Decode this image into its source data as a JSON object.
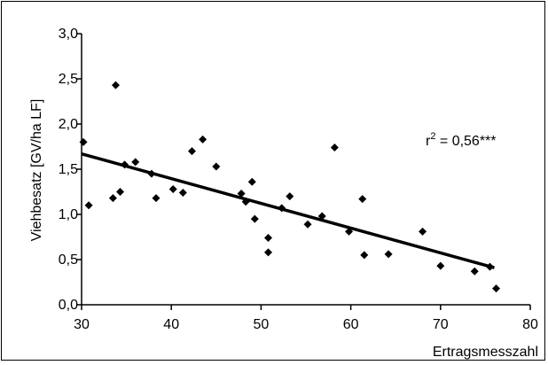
{
  "chart_data": {
    "type": "scatter",
    "xlabel": "Ertragsmesszahl",
    "ylabel": "Viehbesatz  [GV/ha LF]",
    "xlim": [
      30,
      80
    ],
    "ylim": [
      0,
      3
    ],
    "xticks": [
      30,
      40,
      50,
      60,
      70,
      80
    ],
    "yticks": [
      0,
      0.5,
      1,
      1.5,
      2,
      2.5,
      3
    ],
    "xtick_labels": [
      "30",
      "40",
      "50",
      "60",
      "70",
      "80"
    ],
    "ytick_labels": [
      "0,0",
      "0,5",
      "1,0",
      "1,5",
      "2,0",
      "2,5",
      "3,0"
    ],
    "grid": false,
    "annotation": {
      "base": "r",
      "sup": "2",
      "rest": " = 0,56***"
    },
    "points": [
      [
        30.2,
        1.8
      ],
      [
        30.8,
        1.1
      ],
      [
        33.5,
        1.18
      ],
      [
        33.8,
        2.43
      ],
      [
        34.3,
        1.25
      ],
      [
        34.8,
        1.55
      ],
      [
        36.0,
        1.58
      ],
      [
        37.8,
        1.45
      ],
      [
        38.3,
        1.18
      ],
      [
        40.2,
        1.28
      ],
      [
        41.3,
        1.24
      ],
      [
        42.3,
        1.7
      ],
      [
        43.5,
        1.83
      ],
      [
        45.0,
        1.53
      ],
      [
        47.8,
        1.23
      ],
      [
        48.3,
        1.14
      ],
      [
        49.0,
        1.36
      ],
      [
        49.3,
        0.95
      ],
      [
        50.8,
        0.74
      ],
      [
        50.8,
        0.58
      ],
      [
        52.3,
        1.07
      ],
      [
        53.2,
        1.2
      ],
      [
        55.2,
        0.89
      ],
      [
        56.8,
        0.98
      ],
      [
        58.2,
        1.74
      ],
      [
        59.8,
        0.81
      ],
      [
        61.3,
        1.17
      ],
      [
        61.5,
        0.55
      ],
      [
        64.2,
        0.56
      ],
      [
        68.0,
        0.81
      ],
      [
        70.0,
        0.43
      ],
      [
        73.8,
        0.37
      ],
      [
        75.5,
        0.42
      ],
      [
        76.2,
        0.18
      ]
    ],
    "trendline": {
      "x": [
        30,
        76
      ],
      "y": [
        1.67,
        0.41
      ]
    }
  }
}
